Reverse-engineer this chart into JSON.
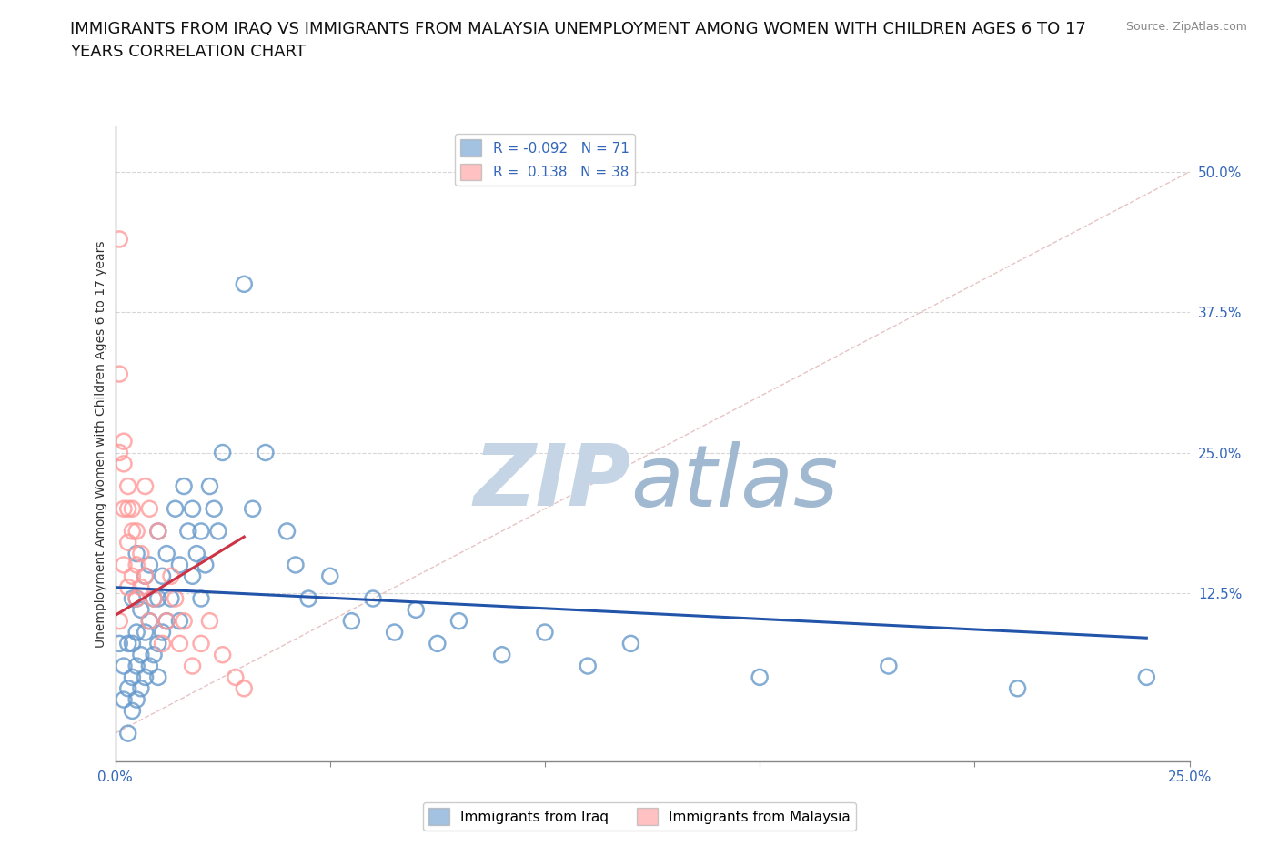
{
  "title": "IMMIGRANTS FROM IRAQ VS IMMIGRANTS FROM MALAYSIA UNEMPLOYMENT AMONG WOMEN WITH CHILDREN AGES 6 TO 17\nYEARS CORRELATION CHART",
  "source_text": "Source: ZipAtlas.com",
  "ylabel": "Unemployment Among Women with Children Ages 6 to 17 years",
  "xlim": [
    0.0,
    0.25
  ],
  "ylim": [
    -0.025,
    0.54
  ],
  "xticks": [
    0.0,
    0.05,
    0.1,
    0.15,
    0.2,
    0.25
  ],
  "xtick_labels": [
    "0.0%",
    "",
    "",
    "",
    "",
    "25.0%"
  ],
  "yticks_right": [
    0.125,
    0.25,
    0.375,
    0.5
  ],
  "ytick_labels_right": [
    "12.5%",
    "25.0%",
    "37.5%",
    "50.0%"
  ],
  "iraq_color": "#6699CC",
  "malaysia_color": "#FF9999",
  "iraq_R": -0.092,
  "iraq_N": 71,
  "malaysia_R": 0.138,
  "malaysia_N": 38,
  "iraq_scatter_x": [
    0.001,
    0.002,
    0.002,
    0.003,
    0.003,
    0.003,
    0.004,
    0.004,
    0.004,
    0.004,
    0.005,
    0.005,
    0.005,
    0.005,
    0.005,
    0.006,
    0.006,
    0.006,
    0.007,
    0.007,
    0.007,
    0.008,
    0.008,
    0.008,
    0.009,
    0.009,
    0.01,
    0.01,
    0.01,
    0.01,
    0.011,
    0.011,
    0.012,
    0.012,
    0.013,
    0.014,
    0.015,
    0.015,
    0.016,
    0.017,
    0.018,
    0.018,
    0.019,
    0.02,
    0.02,
    0.021,
    0.022,
    0.023,
    0.024,
    0.025,
    0.03,
    0.032,
    0.035,
    0.04,
    0.042,
    0.045,
    0.05,
    0.055,
    0.06,
    0.065,
    0.07,
    0.075,
    0.08,
    0.09,
    0.1,
    0.11,
    0.12,
    0.15,
    0.18,
    0.21,
    0.24
  ],
  "iraq_scatter_y": [
    0.08,
    0.03,
    0.06,
    0.0,
    0.04,
    0.08,
    0.02,
    0.05,
    0.08,
    0.12,
    0.03,
    0.06,
    0.09,
    0.12,
    0.16,
    0.04,
    0.07,
    0.11,
    0.05,
    0.09,
    0.14,
    0.06,
    0.1,
    0.15,
    0.07,
    0.12,
    0.05,
    0.08,
    0.12,
    0.18,
    0.09,
    0.14,
    0.1,
    0.16,
    0.12,
    0.2,
    0.1,
    0.15,
    0.22,
    0.18,
    0.14,
    0.2,
    0.16,
    0.12,
    0.18,
    0.15,
    0.22,
    0.2,
    0.18,
    0.25,
    0.4,
    0.2,
    0.25,
    0.18,
    0.15,
    0.12,
    0.14,
    0.1,
    0.12,
    0.09,
    0.11,
    0.08,
    0.1,
    0.07,
    0.09,
    0.06,
    0.08,
    0.05,
    0.06,
    0.04,
    0.05
  ],
  "malaysia_scatter_x": [
    0.001,
    0.001,
    0.001,
    0.001,
    0.002,
    0.002,
    0.002,
    0.002,
    0.003,
    0.003,
    0.003,
    0.003,
    0.004,
    0.004,
    0.004,
    0.005,
    0.005,
    0.005,
    0.006,
    0.006,
    0.007,
    0.007,
    0.008,
    0.008,
    0.009,
    0.01,
    0.011,
    0.012,
    0.013,
    0.014,
    0.015,
    0.016,
    0.018,
    0.02,
    0.022,
    0.025,
    0.028,
    0.03
  ],
  "malaysia_scatter_y": [
    0.44,
    0.32,
    0.25,
    0.1,
    0.26,
    0.24,
    0.2,
    0.15,
    0.22,
    0.2,
    0.17,
    0.13,
    0.2,
    0.18,
    0.14,
    0.18,
    0.15,
    0.12,
    0.16,
    0.13,
    0.22,
    0.14,
    0.2,
    0.1,
    0.12,
    0.18,
    0.08,
    0.1,
    0.14,
    0.12,
    0.08,
    0.1,
    0.06,
    0.08,
    0.1,
    0.07,
    0.05,
    0.04
  ],
  "iraq_line_x": [
    0.0,
    0.24
  ],
  "iraq_line_y": [
    0.13,
    0.085
  ],
  "malaysia_line_x": [
    0.0,
    0.03
  ],
  "malaysia_line_y": [
    0.105,
    0.175
  ],
  "diag_line_x": [
    0.0,
    0.25
  ],
  "diag_line_y": [
    0.0,
    0.5
  ],
  "background_color": "#ffffff",
  "grid_color": "#bbbbbb",
  "title_fontsize": 13,
  "axis_label_fontsize": 10,
  "tick_fontsize": 11,
  "legend_fontsize": 11,
  "watermark_zip": "ZIP",
  "watermark_atlas": "atlas",
  "watermark_color_zip": "#c5d5e5",
  "watermark_color_atlas": "#a0b8d0"
}
